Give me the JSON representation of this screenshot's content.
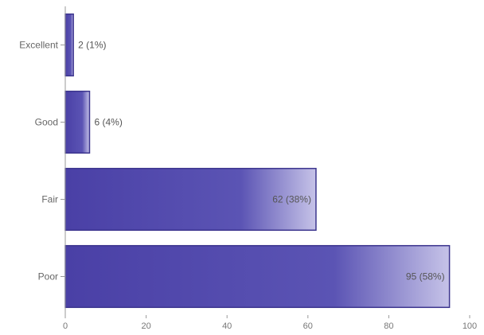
{
  "chart_data": {
    "type": "bar",
    "orientation": "horizontal",
    "categories": [
      "Excellent",
      "Good",
      "Fair",
      "Poor"
    ],
    "values": [
      2,
      6,
      62,
      95
    ],
    "data_labels": [
      "2 (1%)",
      "6 (4%)",
      "62 (38%)",
      "95 (58%)"
    ],
    "xlim": [
      0,
      100
    ],
    "x_ticks": [
      0,
      20,
      40,
      60,
      80,
      100
    ],
    "title": "",
    "xlabel": "",
    "ylabel": "",
    "grid": false,
    "legend": "none",
    "colors": {
      "bar_dark": "#4a40a6",
      "bar_mid": "#5b54b4",
      "bar_light": "#c6c3e8",
      "bar_edge": "#3c358e",
      "axis": "#999999"
    }
  }
}
